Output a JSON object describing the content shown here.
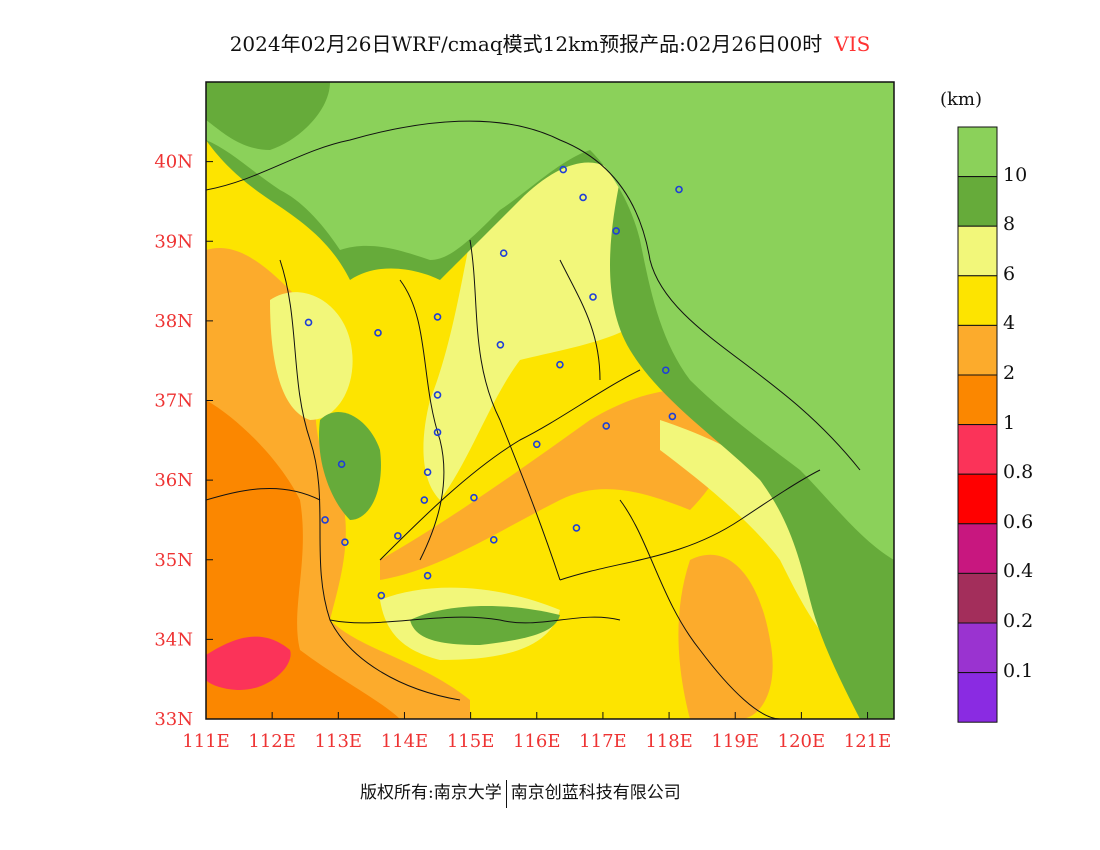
{
  "title": {
    "main": "2024年02月26日WRF/cmaq模式12km预报产品:02月26日00时",
    "variable": "VIS"
  },
  "legend": {
    "unit": "(km)",
    "bins": [
      {
        "color": "#8bd15a"
      },
      {
        "color": "#66ab3a"
      },
      {
        "color": "#f2f77a"
      },
      {
        "color": "#fde400"
      },
      {
        "color": "#fcab2c"
      },
      {
        "color": "#fb8700"
      },
      {
        "color": "#fb3359"
      },
      {
        "color": "#ff0000"
      },
      {
        "color": "#c8177f"
      },
      {
        "color": "#a32e5b"
      },
      {
        "color": "#9a33d0"
      },
      {
        "color": "#8a2be2"
      }
    ],
    "labels": [
      "10",
      "8",
      "6",
      "4",
      "2",
      "1",
      "0.8",
      "0.6",
      "0.4",
      "0.2",
      "0.1"
    ]
  },
  "axes": {
    "lon_ticks": [
      "111E",
      "112E",
      "113E",
      "114E",
      "115E",
      "116E",
      "117E",
      "118E",
      "119E",
      "120E",
      "121E"
    ],
    "lat_ticks": [
      "40N",
      "39N",
      "38N",
      "37N",
      "36N",
      "35N",
      "34N",
      "33N"
    ],
    "lon_range": [
      111,
      121.4
    ],
    "lat_range": [
      33,
      41
    ]
  },
  "stations": [
    [
      116.4,
      39.9
    ],
    [
      116.7,
      39.55
    ],
    [
      117.2,
      39.13
    ],
    [
      118.15,
      39.65
    ],
    [
      115.5,
      38.85
    ],
    [
      116.85,
      38.3
    ],
    [
      114.5,
      38.05
    ],
    [
      112.55,
      37.98
    ],
    [
      113.6,
      37.85
    ],
    [
      115.45,
      37.7
    ],
    [
      116.35,
      37.45
    ],
    [
      117.95,
      37.38
    ],
    [
      114.5,
      37.07
    ],
    [
      117.05,
      36.68
    ],
    [
      118.05,
      36.8
    ],
    [
      114.5,
      36.6
    ],
    [
      116.0,
      36.45
    ],
    [
      113.05,
      36.2
    ],
    [
      114.35,
      36.1
    ],
    [
      114.3,
      35.75
    ],
    [
      115.05,
      35.78
    ],
    [
      112.8,
      35.5
    ],
    [
      113.9,
      35.3
    ],
    [
      113.1,
      35.22
    ],
    [
      115.35,
      35.25
    ],
    [
      116.6,
      35.4
    ],
    [
      114.35,
      34.8
    ],
    [
      113.65,
      34.55
    ]
  ],
  "footer": {
    "left": "版权所有:南京大学",
    "right": "南京创蓝科技有限公司"
  },
  "colors": {
    "tick_labels": "#ee3333",
    "variable": "#ff3333",
    "station_marker": "#1f3fd6"
  }
}
